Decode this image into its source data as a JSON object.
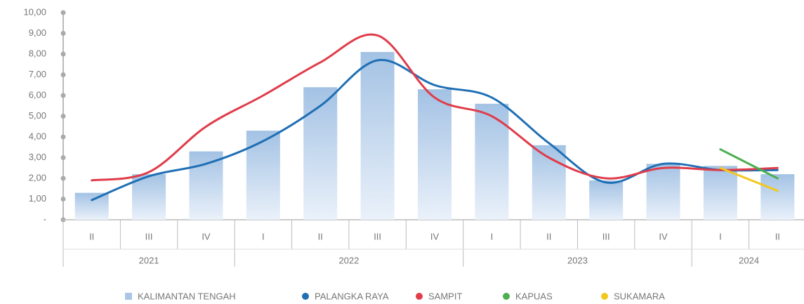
{
  "chart_data": {
    "type": "bar",
    "categories": [
      "II",
      "III",
      "IV",
      "I",
      "II",
      "III",
      "IV",
      "I",
      "II",
      "III",
      "IV",
      "I",
      "II"
    ],
    "groups": [
      {
        "label": "2021",
        "count": 3
      },
      {
        "label": "2022",
        "count": 4
      },
      {
        "label": "2023",
        "count": 4
      },
      {
        "label": "2024",
        "count": 2
      }
    ],
    "ylim": [
      0,
      10
    ],
    "yticks": [
      {
        "value": 0,
        "label": "-"
      },
      {
        "value": 1,
        "label": "1,00"
      },
      {
        "value": 2,
        "label": "2,00"
      },
      {
        "value": 3,
        "label": "3,00"
      },
      {
        "value": 4,
        "label": "4,00"
      },
      {
        "value": 5,
        "label": "5,00"
      },
      {
        "value": 6,
        "label": "6,00"
      },
      {
        "value": 7,
        "label": "7,00"
      },
      {
        "value": 8,
        "label": "8,00"
      },
      {
        "value": 9,
        "label": "9,00"
      },
      {
        "value": 10,
        "label": "10,00"
      }
    ],
    "series": [
      {
        "name": "KALIMANTAN TENGAH",
        "type": "bar",
        "color": "#a9c6e6",
        "values": [
          1.3,
          2.2,
          3.3,
          4.3,
          6.4,
          8.1,
          6.3,
          5.6,
          3.6,
          1.9,
          2.7,
          2.6,
          2.2
        ]
      },
      {
        "name": "PALANGKA RAYA",
        "type": "line",
        "color": "#1f6fb5",
        "values": [
          0.95,
          2.1,
          2.7,
          3.8,
          5.5,
          7.7,
          6.5,
          5.9,
          3.7,
          1.8,
          2.7,
          2.4,
          2.4
        ]
      },
      {
        "name": "SAMPIT",
        "type": "line",
        "color": "#e03c4a",
        "values": [
          1.9,
          2.3,
          4.5,
          6.0,
          7.6,
          8.9,
          5.9,
          5.0,
          3.0,
          2.0,
          2.5,
          2.4,
          2.5
        ]
      },
      {
        "name": "KAPUAS",
        "type": "line",
        "color": "#4caf50",
        "values": [
          null,
          null,
          null,
          null,
          null,
          null,
          null,
          null,
          null,
          null,
          null,
          3.4,
          2.0
        ]
      },
      {
        "name": "SUKAMARA",
        "type": "line",
        "color": "#f2c81e",
        "values": [
          null,
          null,
          null,
          null,
          null,
          null,
          null,
          null,
          null,
          null,
          null,
          2.5,
          1.4
        ]
      }
    ]
  }
}
